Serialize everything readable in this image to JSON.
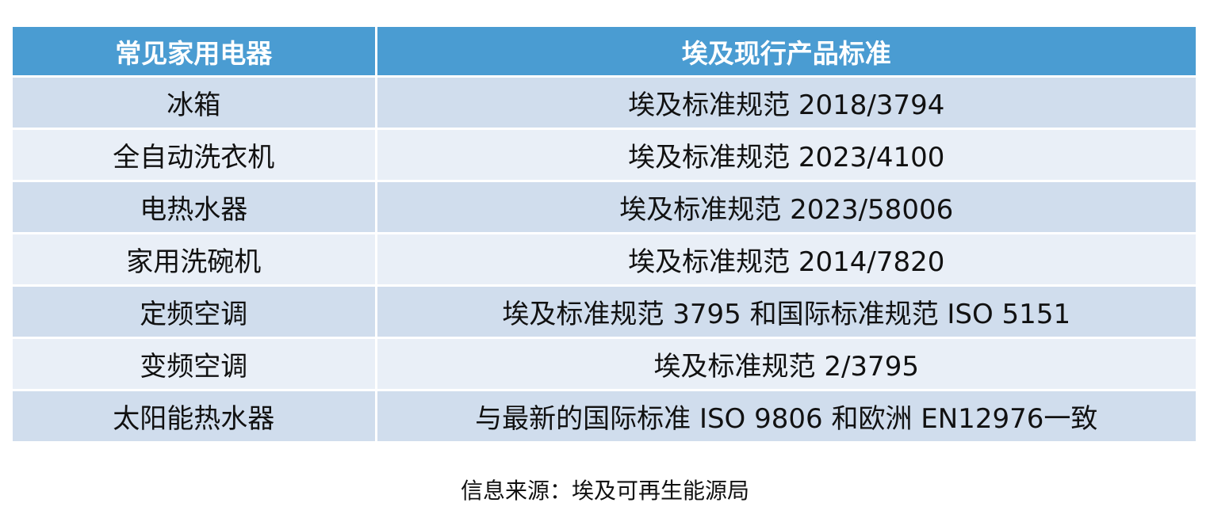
{
  "table": {
    "headers": [
      "常见家用电器",
      "埃及现行产品标准"
    ],
    "rows": [
      [
        "冰箱",
        "埃及标准规范 2018/3794"
      ],
      [
        "全自动洗衣机",
        "埃及标准规范 2023/4100"
      ],
      [
        "电热水器",
        "埃及标准规范 2023/58006"
      ],
      [
        "家用洗碗机",
        "埃及标准规范 2014/7820"
      ],
      [
        "定频空调",
        "埃及标准规范 3795 和国际标准规范 ISO 5151"
      ],
      [
        "变频空调",
        "埃及标准规范 2/3795"
      ],
      [
        "太阳能热水器",
        "与最新的国际标准 ISO 9806 和欧洲 EN12976一致"
      ]
    ]
  },
  "source": "信息来源：埃及可再生能源局"
}
